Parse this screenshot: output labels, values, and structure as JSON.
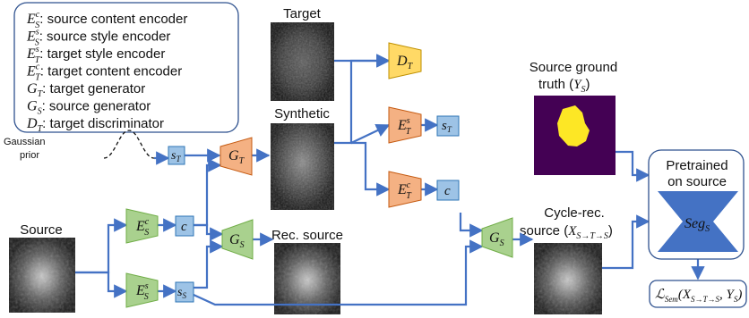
{
  "legend": {
    "items": [
      {
        "sym": "E",
        "sup": "c",
        "sub": "S",
        "desc": ": source content encoder"
      },
      {
        "sym": "E",
        "sup": "s",
        "sub": "S",
        "desc": ": source style encoder"
      },
      {
        "sym": "E",
        "sup": "s",
        "sub": "T",
        "desc": ": target style encoder"
      },
      {
        "sym": "E",
        "sup": "c",
        "sub": "T",
        "desc": ": target content encoder"
      },
      {
        "sym": "G",
        "sup": "",
        "sub": "T",
        "desc": ": target generator"
      },
      {
        "sym": "G",
        "sup": "",
        "sub": "S",
        "desc": ": source generator"
      },
      {
        "sym": "D",
        "sup": "",
        "sub": "T",
        "desc": ": target discriminator"
      }
    ]
  },
  "labels": {
    "gaussian": "Gaussian",
    "prior": "prior",
    "source": "Source",
    "target": "Target",
    "synthetic": "Synthetic",
    "rec_source": "Rec. source",
    "gt_line1": "Source ground",
    "gt_line2": "truth (",
    "gt_sym": "Y",
    "gt_sub": "S",
    "cycle_line1": "Cycle-rec.",
    "cycle_line2": "source (",
    "cycle_sym": "X",
    "cycle_sub": "S→T→S",
    "pretrained_line1": "Pretrained",
    "pretrained_line2": "on source",
    "seg_sym": "Seg",
    "seg_sub": "S",
    "loss_sym": "ℒ",
    "loss_sub": "Sem",
    "loss_arg_sym": "X",
    "loss_arg_sub": "S→T→S",
    "loss_arg2_sym": "Y",
    "loss_arg2_sub": "S"
  },
  "blocks": {
    "enc_content_src": {
      "sym": "E",
      "sup": "c",
      "sub": "S"
    },
    "enc_style_src": {
      "sym": "E",
      "sup": "s",
      "sub": "S"
    },
    "enc_style_tgt": {
      "sym": "E",
      "sup": "s",
      "sub": "T"
    },
    "enc_content_tgt": {
      "sym": "E",
      "sup": "c",
      "sub": "T"
    },
    "gen_tgt": {
      "sym": "G",
      "sub": "T"
    },
    "gen_src_1": {
      "sym": "G",
      "sub": "S"
    },
    "gen_src_2": {
      "sym": "G",
      "sub": "S"
    },
    "disc_tgt": {
      "sym": "D",
      "sub": "T"
    },
    "code_sT_in": {
      "sym": "s",
      "sub": "T"
    },
    "code_sT_out": {
      "sym": "s",
      "sub": "T"
    },
    "code_c_src": {
      "sym": "c",
      "sub": ""
    },
    "code_c_tgt": {
      "sym": "c",
      "sub": ""
    },
    "code_sS": {
      "sym": "s",
      "sub": "S"
    }
  },
  "colors": {
    "arrow": "#4472c4",
    "encoder_green": "#a9d18e",
    "encoder_green_stroke": "#70ad47",
    "target_enc": "#f4b183",
    "target_enc_stroke": "#c55a11",
    "disc": "#ffd966",
    "disc_stroke": "#bf9000",
    "code": "#9dc3e6",
    "code_stroke": "#2e75b6",
    "seg": "#4472c4",
    "gt_bg": "#440154",
    "gt_fg": "#fde725"
  }
}
